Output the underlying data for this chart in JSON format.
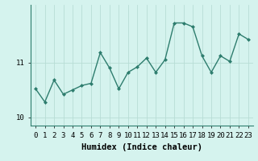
{
  "xlabel": "Humidex (Indice chaleur)",
  "x": [
    0,
    1,
    2,
    3,
    4,
    5,
    6,
    7,
    8,
    9,
    10,
    11,
    12,
    13,
    14,
    15,
    16,
    17,
    18,
    19,
    20,
    21,
    22,
    23
  ],
  "y": [
    10.52,
    10.28,
    10.68,
    10.42,
    10.5,
    10.58,
    10.62,
    11.18,
    10.9,
    10.52,
    10.82,
    10.92,
    11.08,
    10.82,
    11.05,
    11.72,
    11.72,
    11.65,
    11.12,
    10.82,
    11.12,
    11.02,
    11.52,
    11.42
  ],
  "line_color": "#2e7d6e",
  "marker": "D",
  "marker_size": 2,
  "linewidth": 1.0,
  "background_color": "#d5f3ee",
  "grid_color": "#b8ddd6",
  "ylim": [
    9.85,
    12.05
  ],
  "xlim": [
    -0.5,
    23.5
  ],
  "yticks": [
    10,
    11
  ],
  "xticks": [
    0,
    1,
    2,
    3,
    4,
    5,
    6,
    7,
    8,
    9,
    10,
    11,
    12,
    13,
    14,
    15,
    16,
    17,
    18,
    19,
    20,
    21,
    22,
    23
  ],
  "tick_fontsize": 6.5,
  "xlabel_fontsize": 7.5,
  "spine_color": "#2e7d6e"
}
